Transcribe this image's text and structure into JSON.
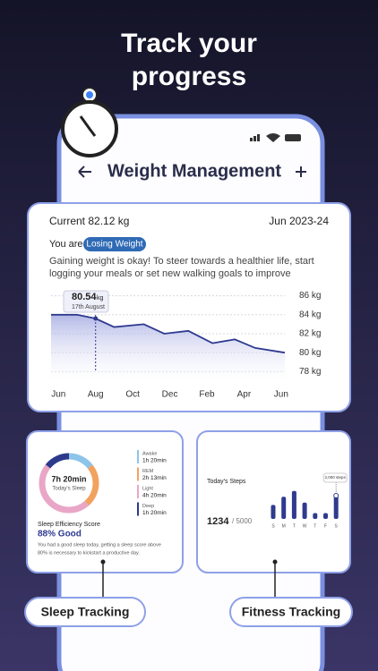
{
  "headline": [
    "Track your",
    "progress"
  ],
  "app_header": {
    "title": "Weight Management"
  },
  "weight_card": {
    "current": "Current 82.12 kg",
    "period": "Jun 2023-24",
    "status_prefix": "You are",
    "status": "Losing Weight",
    "message": [
      "Gaining weight is okay! To steer towards a healthier life, start",
      "logging your meals or set new walking goals to improve"
    ],
    "tooltip": {
      "value": "80.54",
      "unit": "kg",
      "date": "17th August"
    },
    "chart_data": {
      "type": "area",
      "x": [
        -0.4,
        1,
        2,
        3,
        4.6,
        5.7,
        7,
        8.3,
        9.5,
        10.6,
        12.2
      ],
      "values": [
        84,
        84,
        83.6,
        82.7,
        83,
        82,
        82.3,
        81,
        81.4,
        80.5,
        80
      ],
      "color": "#2f3a8f",
      "xlim": [
        -0.4,
        12.2
      ],
      "xticks": [
        {
          "value": 0,
          "label": "Jun"
        },
        {
          "value": 2,
          "label": "Aug"
        },
        {
          "value": 4,
          "label": "Oct"
        },
        {
          "value": 6,
          "label": "Dec"
        },
        {
          "value": 8,
          "label": "Feb"
        },
        {
          "value": 10,
          "label": "Apr"
        },
        {
          "value": 12,
          "label": "Jun"
        }
      ],
      "ylim": [
        77,
        87
      ],
      "yticks": [
        {
          "value": 78,
          "label": "78 kg"
        },
        {
          "value": 80,
          "label": "80 kg"
        },
        {
          "value": 82,
          "label": "82 kg"
        },
        {
          "value": 84,
          "label": "84 kg"
        },
        {
          "value": 86,
          "label": "86 kg"
        }
      ],
      "grid": true
    }
  },
  "sleep_card": {
    "center_value": "7h 20min",
    "center_label": "Today's Sleep",
    "score_title": "Sleep Efficiency Score",
    "score": "88% Good",
    "note": [
      "You had a good sleep today, getting a sleep score above",
      "80% is necessary to kickstart a productive day."
    ],
    "chart_data": {
      "type": "donut",
      "categories": [
        "Awake",
        "REM",
        "Light",
        "Deep"
      ],
      "values": [
        80,
        133,
        260,
        80
      ],
      "value_labels": [
        "1h 20min",
        "2h 13min",
        "4h 20min",
        "1h 20min"
      ],
      "colors": [
        "#8cc4ea",
        "#f2a25f",
        "#e9a6c6",
        "#2d3a8c"
      ]
    }
  },
  "fitness_card": {
    "title": "Today's Steps",
    "steps": "1234",
    "goal": "/ 5000",
    "chart_data": {
      "type": "bar",
      "categories": [
        "S",
        "M",
        "T",
        "W",
        "T",
        "F",
        "S"
      ],
      "values": [
        1200,
        1900,
        2400,
        1400,
        500,
        500,
        2000
      ],
      "annotation": "2,000 steps",
      "color": "#2f3a8f",
      "ylim": [
        0,
        3000
      ]
    }
  },
  "labels": [
    "Sleep Tracking",
    "Fitness Tracking"
  ]
}
